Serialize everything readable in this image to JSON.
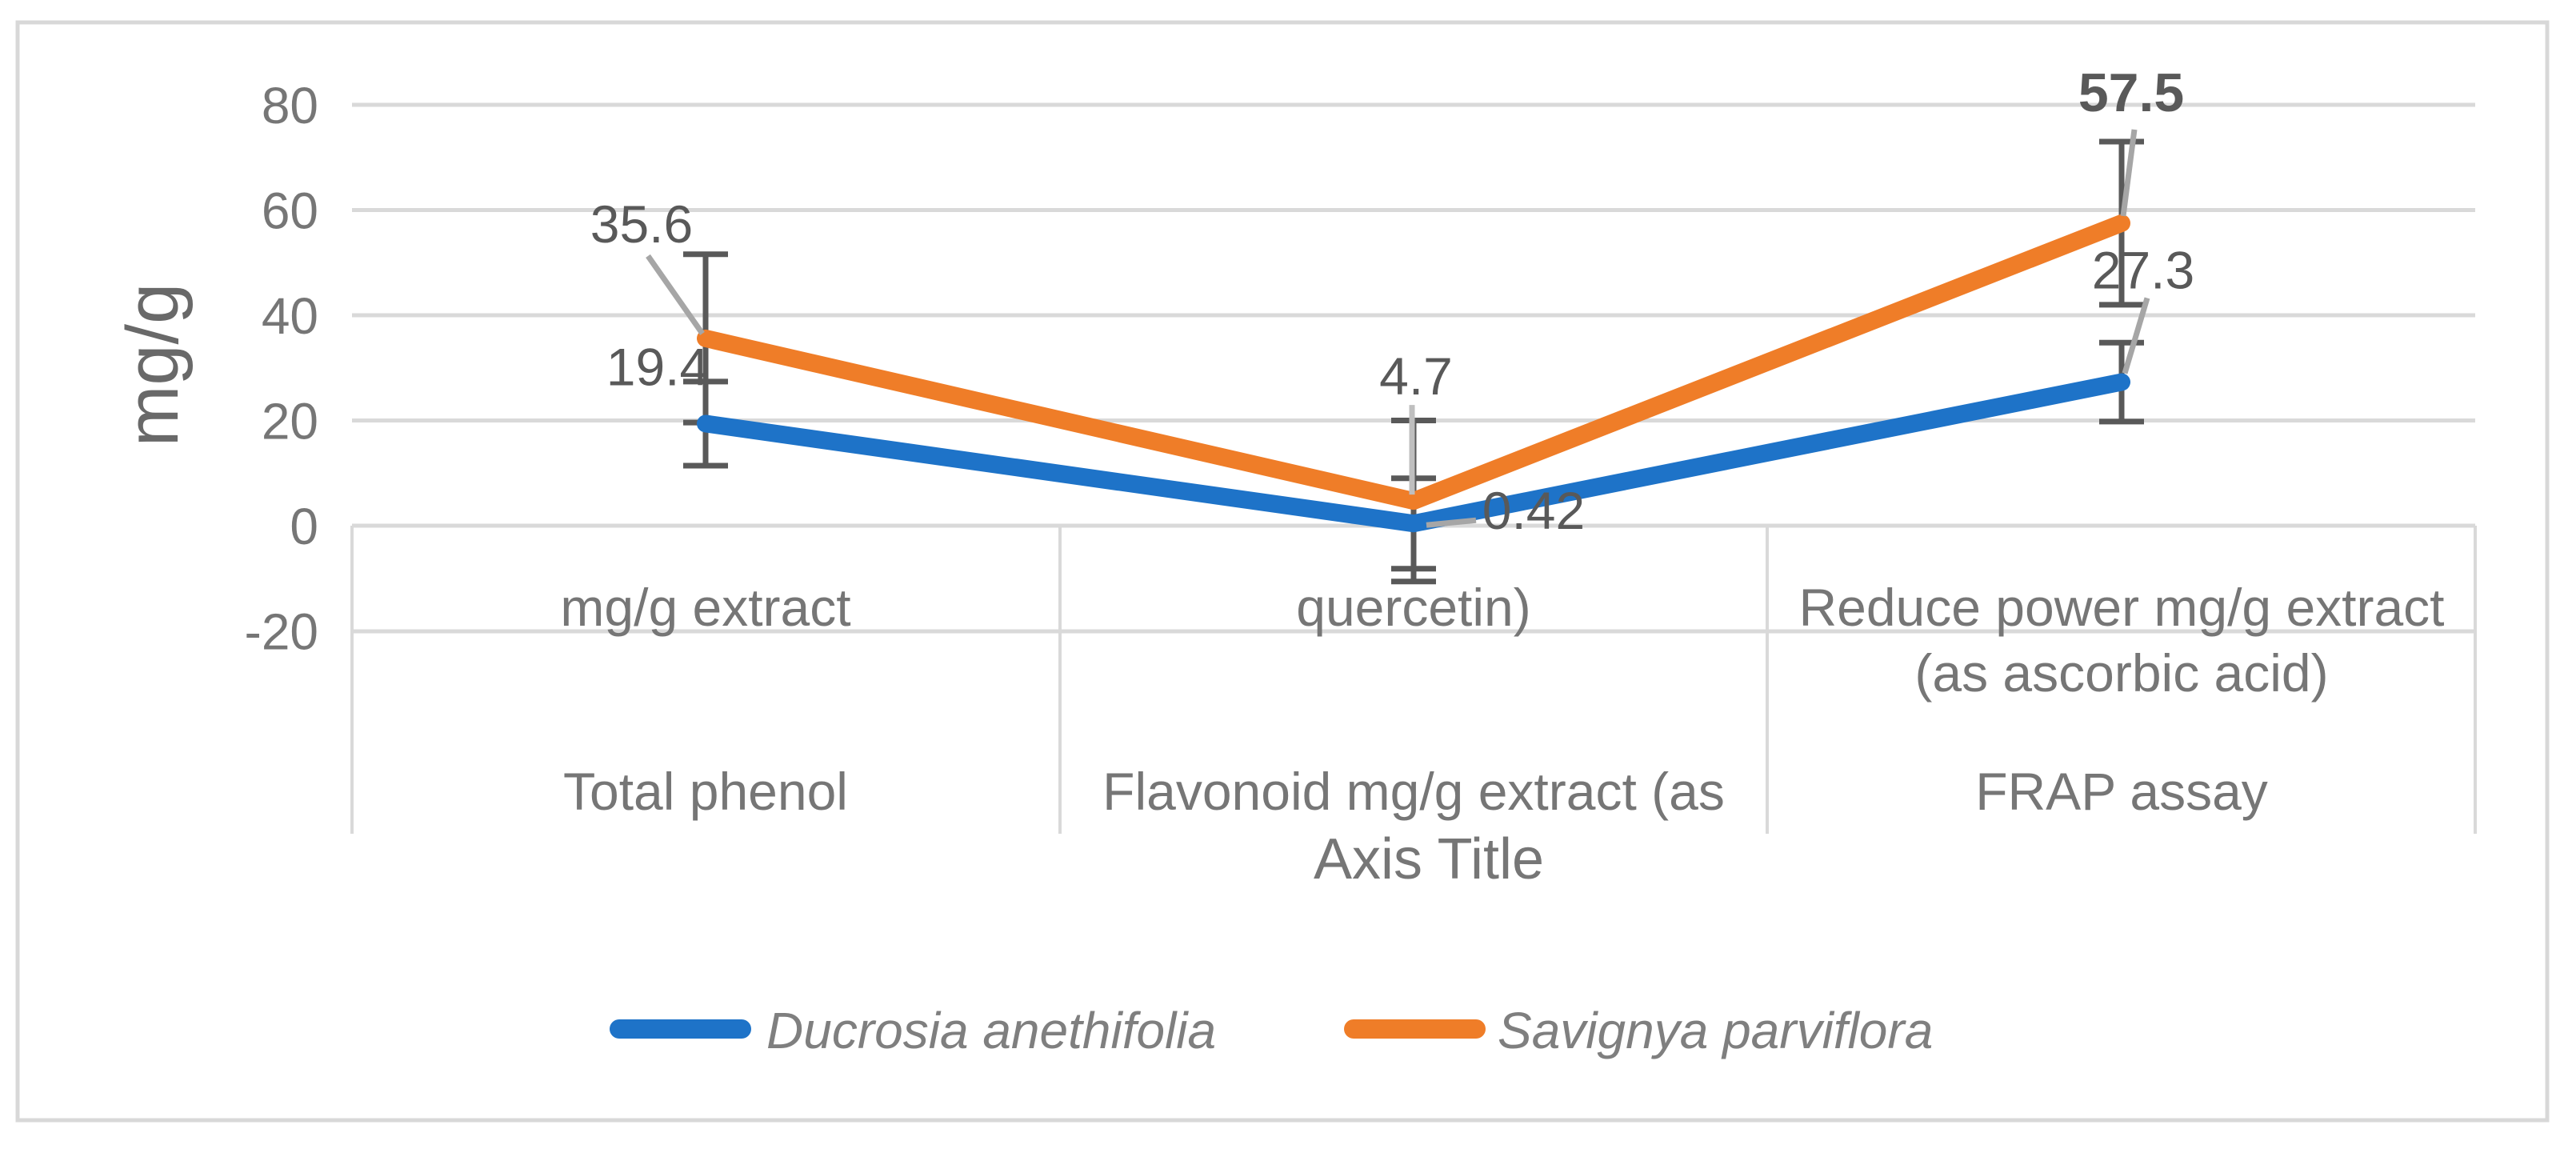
{
  "chart_data": {
    "type": "line",
    "title": "",
    "y_axis": {
      "title": "mg/g",
      "ticks": [
        "80",
        "60",
        "40",
        "20",
        "0",
        "-20"
      ],
      "tick_values": [
        80,
        60,
        40,
        20,
        0,
        -20
      ],
      "gridline_values": [
        80,
        60,
        40,
        20
      ],
      "min": -20,
      "max": 80,
      "grid": true
    },
    "x_axis": {
      "title": "Axis Title",
      "categories": [
        {
          "unit_lines": [
            "mg/g extract"
          ],
          "name": "Total phenol"
        },
        {
          "unit_lines": [
            "quercetin)"
          ],
          "name": "Flavonoid mg/g extract (as"
        },
        {
          "unit_lines": [
            "Reduce power mg/g extract",
            "(as ascorbic acid)"
          ],
          "name": "FRAP assay"
        }
      ]
    },
    "series": [
      {
        "name": "Ducrosia anethifolia",
        "color": "#1E73C8",
        "values": [
          19.4,
          0.42,
          27.3
        ],
        "labels": [
          "19.4",
          "0.42",
          "27.3"
        ],
        "errors": [
          8,
          8.6,
          7.5
        ],
        "bold_labels": [
          false,
          false,
          false
        ]
      },
      {
        "name": "Savignya parviflora",
        "color": "#EF7D28",
        "values": [
          35.6,
          4.7,
          57.5
        ],
        "labels": [
          "35.6",
          "4.7",
          "57.5"
        ],
        "errors": [
          16,
          15.3,
          15.5
        ],
        "bold_labels": [
          false,
          false,
          true
        ]
      }
    ],
    "legend": {
      "position": "bottom",
      "items": [
        {
          "label": "Ducrosia anethifolia",
          "color": "#1E73C8"
        },
        {
          "label": "Savignya parviflora",
          "color": "#EF7D28"
        }
      ]
    }
  },
  "colors": {
    "background": "#FFFFFF",
    "frame": "#D8D8D8",
    "gridline": "#D9D9D9",
    "error_bar": "#595959",
    "leader": "#A6A6A6",
    "leader_light": "#BFBFBF",
    "axis_text": "#767676",
    "data_label": "#595959",
    "y_title_text": "#696969",
    "legend_text": "#7F7F7F"
  }
}
